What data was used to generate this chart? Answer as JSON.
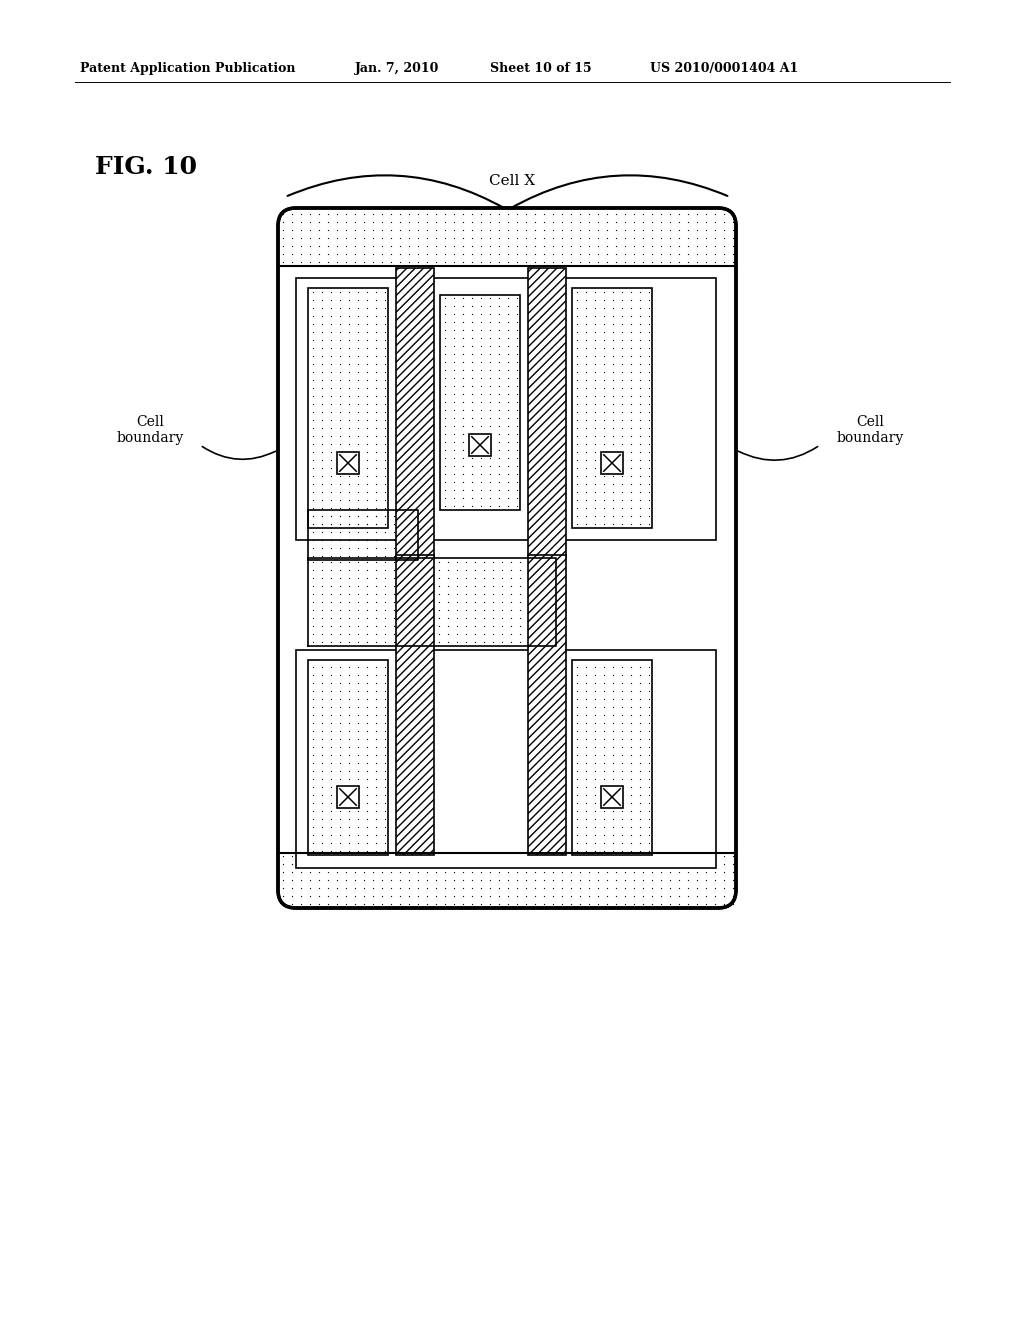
{
  "bg_color": "#ffffff",
  "header_text": "Patent Application Publication",
  "header_date": "Jan. 7, 2010",
  "header_sheet": "Sheet 10 of 15",
  "header_patent": "US 2010/0001404 A1",
  "fig_label": "FIG. 10",
  "cell_x_label": "Cell X",
  "cell_boundary_left": "Cell\nboundary",
  "cell_boundary_right": "Cell\nboundary"
}
